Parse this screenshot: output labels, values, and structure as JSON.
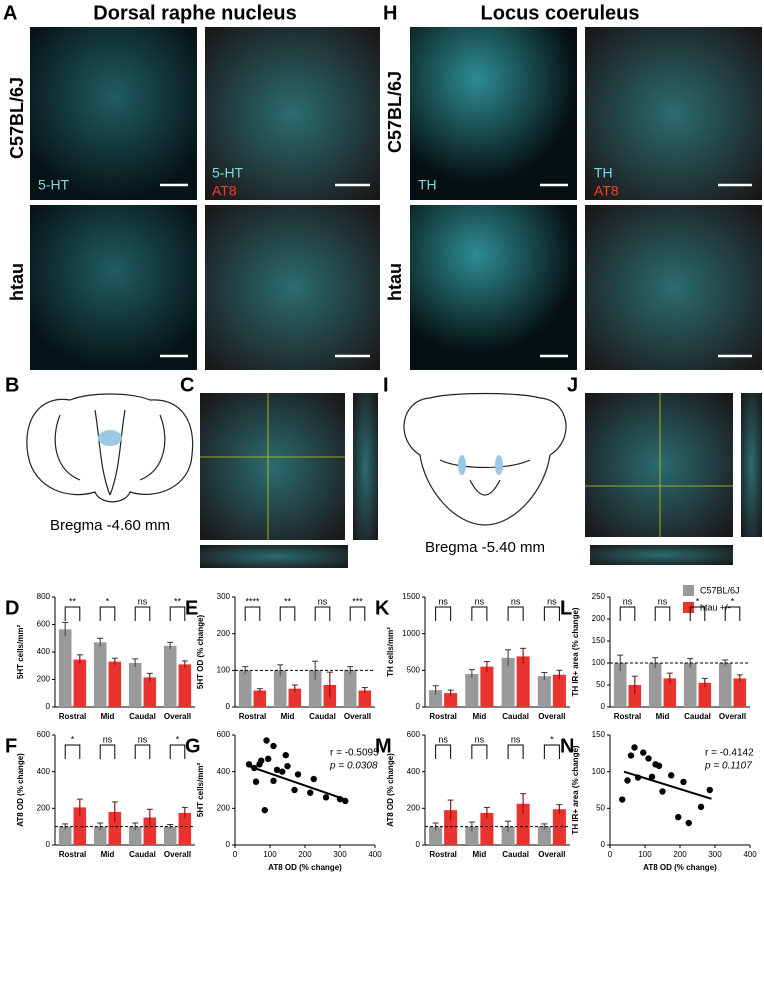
{
  "figure": {
    "titles": [
      "Dorsal raphe nucleus",
      "Locus coeruleus"
    ],
    "panel_letters": [
      "A",
      "H",
      "B",
      "C",
      "I",
      "J"
    ],
    "row_labels": [
      "C57BL/6J",
      "htau",
      "C57BL/6J",
      "htau"
    ],
    "image_labels": [
      "5-HT",
      "5-HT",
      "AT8",
      "TH",
      "TH",
      "AT8"
    ],
    "bregma": [
      "Bregma -4.60 mm",
      "Bregma -5.40 mm"
    ]
  },
  "chart_data": [
    {
      "type": "bar",
      "panel": "D",
      "ylabel": "5HT cells/mm²",
      "categories": [
        "Rostral",
        "Mid",
        "Caudal",
        "Overall"
      ],
      "ylim": [
        0,
        800
      ],
      "yticks": [
        0,
        200,
        400,
        600,
        800
      ],
      "significance": [
        "**",
        "*",
        "ns",
        "**"
      ],
      "series": [
        {
          "name": "C57BL/6J",
          "color": "#9a9a9a",
          "values": [
            565,
            470,
            320,
            445
          ],
          "errors": [
            50,
            30,
            30,
            25
          ]
        },
        {
          "name": "htau +/-",
          "color": "#e8332f",
          "values": [
            345,
            330,
            215,
            310
          ],
          "errors": [
            35,
            25,
            30,
            25
          ]
        }
      ]
    },
    {
      "type": "bar",
      "panel": "E",
      "ylabel": "5HT OD (% change)",
      "categories": [
        "Rostral",
        "Mid",
        "Caudal",
        "Overall"
      ],
      "ylim": [
        0,
        300
      ],
      "yticks": [
        0,
        100,
        200,
        300
      ],
      "reference_line": 100,
      "significance": [
        "****",
        "**",
        "ns",
        "***"
      ],
      "series": [
        {
          "name": "C57BL/6J",
          "color": "#9a9a9a",
          "values": [
            100,
            100,
            100,
            100
          ],
          "errors": [
            10,
            15,
            25,
            10
          ]
        },
        {
          "name": "htau +/-",
          "color": "#e8332f",
          "values": [
            45,
            50,
            60,
            45
          ],
          "errors": [
            5,
            10,
            35,
            8
          ]
        }
      ]
    },
    {
      "type": "bar",
      "panel": "K",
      "ylabel": "TH cells/mm²",
      "categories": [
        "Rostral",
        "Mid",
        "Caudal",
        "Overall"
      ],
      "ylim": [
        0,
        1500
      ],
      "yticks": [
        0,
        500,
        1000,
        1500
      ],
      "significance": [
        "ns",
        "ns",
        "ns",
        "ns"
      ],
      "series": [
        {
          "name": "C57BL/6J",
          "color": "#9a9a9a",
          "values": [
            230,
            450,
            670,
            420
          ],
          "errors": [
            60,
            60,
            110,
            50
          ]
        },
        {
          "name": "htau +/-",
          "color": "#e8332f",
          "values": [
            190,
            550,
            690,
            440
          ],
          "errors": [
            40,
            70,
            110,
            60
          ]
        }
      ]
    },
    {
      "type": "bar",
      "panel": "L",
      "ylabel": "TH IR+ area (% change)",
      "categories": [
        "Rostral",
        "Mid",
        "Caudal",
        "Overall"
      ],
      "ylim": [
        0,
        250
      ],
      "yticks": [
        0,
        50,
        100,
        150,
        200,
        250
      ],
      "reference_line": 100,
      "significance": [
        "ns",
        "ns",
        "*",
        "*"
      ],
      "series": [
        {
          "name": "C57BL/6J",
          "color": "#9a9a9a",
          "values": [
            100,
            100,
            100,
            100
          ],
          "errors": [
            18,
            12,
            10,
            7
          ]
        },
        {
          "name": "htau +/-",
          "color": "#e8332f",
          "values": [
            50,
            65,
            55,
            65
          ],
          "errors": [
            20,
            12,
            10,
            8
          ]
        }
      ]
    },
    {
      "type": "bar",
      "panel": "F",
      "ylabel": "AT8 OD (% change)",
      "categories": [
        "Rostral",
        "Mid",
        "Caudal",
        "Overall"
      ],
      "ylim": [
        0,
        600
      ],
      "yticks": [
        0,
        200,
        400,
        600
      ],
      "reference_line": 100,
      "significance": [
        "*",
        "ns",
        "ns",
        "*"
      ],
      "series": [
        {
          "name": "C57BL/6J",
          "color": "#9a9a9a",
          "values": [
            100,
            100,
            100,
            100
          ],
          "errors": [
            15,
            20,
            20,
            12
          ]
        },
        {
          "name": "htau +/-",
          "color": "#e8332f",
          "values": [
            205,
            180,
            150,
            175
          ],
          "errors": [
            45,
            55,
            45,
            30
          ]
        }
      ]
    },
    {
      "type": "scatter",
      "panel": "G",
      "xlabel": "AT8 OD (% change)",
      "ylabel": "5HT cells/mm²",
      "xlim": [
        0,
        400
      ],
      "xticks": [
        0,
        100,
        200,
        300,
        400
      ],
      "ylim": [
        0,
        600
      ],
      "yticks": [
        0,
        200,
        400,
        600
      ],
      "annotations": [
        "r = -0.5095",
        "p = 0.0308"
      ],
      "x": [
        40,
        55,
        60,
        70,
        75,
        85,
        90,
        95,
        110,
        110,
        120,
        135,
        145,
        150,
        170,
        180,
        215,
        225,
        260,
        300,
        315
      ],
      "values": [
        440,
        420,
        345,
        440,
        460,
        190,
        570,
        470,
        540,
        350,
        410,
        400,
        490,
        430,
        300,
        385,
        285,
        360,
        260,
        250,
        240
      ],
      "fit": {
        "x": [
          40,
          320
        ],
        "y": [
          430,
          245
        ]
      }
    },
    {
      "type": "bar",
      "panel": "M",
      "ylabel": "AT8 OD (% change)",
      "categories": [
        "Rostral",
        "Mid",
        "Caudal",
        "Overall"
      ],
      "ylim": [
        0,
        600
      ],
      "yticks": [
        0,
        200,
        400,
        600
      ],
      "reference_line": 100,
      "significance": [
        "ns",
        "ns",
        "ns",
        "*"
      ],
      "series": [
        {
          "name": "C57BL/6J",
          "color": "#9a9a9a",
          "values": [
            100,
            100,
            100,
            100
          ],
          "errors": [
            20,
            25,
            30,
            15
          ]
        },
        {
          "name": "htau +/-",
          "color": "#e8332f",
          "values": [
            190,
            175,
            225,
            195
          ],
          "errors": [
            55,
            30,
            55,
            25
          ]
        }
      ]
    },
    {
      "type": "scatter",
      "panel": "N",
      "xlabel": "AT8 OD (% change)",
      "ylabel": "TH IR+ area (% change)",
      "xlim": [
        0,
        400
      ],
      "xticks": [
        0,
        100,
        200,
        300,
        400
      ],
      "ylim": [
        0,
        150
      ],
      "yticks": [
        0,
        50,
        100,
        150
      ],
      "annotations": [
        "r = -0.4142",
        "p = 0.1107"
      ],
      "x": [
        35,
        50,
        60,
        70,
        80,
        95,
        110,
        120,
        130,
        140,
        150,
        175,
        195,
        210,
        225,
        260,
        285
      ],
      "values": [
        62,
        88,
        122,
        133,
        92,
        126,
        118,
        93,
        110,
        108,
        73,
        95,
        38,
        86,
        30,
        52,
        75
      ],
      "fit": {
        "x": [
          40,
          290
        ],
        "y": [
          100,
          63
        ]
      }
    }
  ]
}
